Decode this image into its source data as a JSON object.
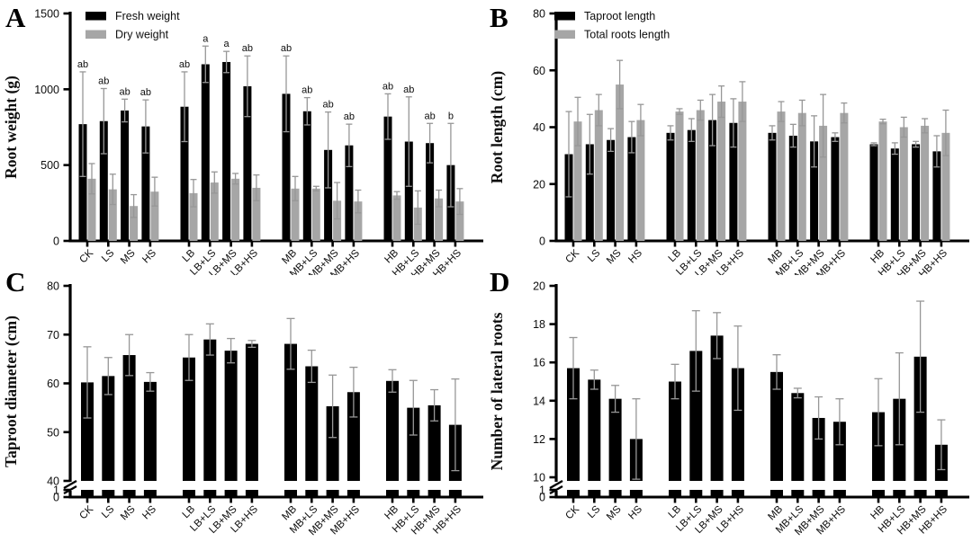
{
  "figure_title": "",
  "colors": {
    "bar_black": "#000000",
    "bar_gray": "#a6a6a6",
    "error_bar": "#979797",
    "axis": "#000000"
  },
  "categories": [
    "CK",
    "LS",
    "MS",
    "HS",
    "LB",
    "LB+LS",
    "LB+MS",
    "LB+HS",
    "MB",
    "MB+LS",
    "MB+MS",
    "MB+HS",
    "HB",
    "HB+LS",
    "HB+MS",
    "HB+HS"
  ],
  "chart_data": [
    {
      "panel_label": "A",
      "type": "bar",
      "ylabel": "Root weight (g)",
      "ylim": [
        0,
        1500
      ],
      "yticks": [
        0,
        500,
        1000,
        1500
      ],
      "legend_position": "top-left-inside",
      "grouping": "4 groups of 4 categories",
      "series": [
        {
          "name": "Fresh weight",
          "color": "#000000",
          "values": [
            770,
            790,
            860,
            755,
            885,
            1165,
            1180,
            1020,
            970,
            855,
            600,
            630,
            820,
            655,
            645,
            500
          ],
          "errors": [
            345,
            215,
            75,
            175,
            230,
            120,
            70,
            200,
            250,
            90,
            250,
            140,
            150,
            295,
            130,
            275
          ]
        },
        {
          "name": "Dry weight",
          "color": "#a6a6a6",
          "values": [
            410,
            340,
            230,
            325,
            315,
            385,
            410,
            350,
            345,
            345,
            265,
            260,
            300,
            220,
            280,
            260
          ],
          "errors": [
            100,
            100,
            75,
            95,
            90,
            70,
            35,
            85,
            80,
            15,
            120,
            75,
            25,
            110,
            55,
            85
          ]
        }
      ],
      "sig_letters": [
        "ab",
        "ab",
        "ab",
        "ab",
        "ab",
        "a",
        "a",
        "ab",
        "ab",
        "ab",
        "ab",
        "ab",
        "ab",
        "ab",
        "ab",
        "b"
      ]
    },
    {
      "panel_label": "B",
      "type": "bar",
      "ylabel": "Root length (cm)",
      "ylim": [
        0,
        80
      ],
      "yticks": [
        0,
        20,
        40,
        60,
        80
      ],
      "legend_position": "top-left-inside",
      "grouping": "4 groups of 4 categories",
      "series": [
        {
          "name": "Taproot length",
          "color": "#000000",
          "values": [
            30.5,
            34,
            35.5,
            36.5,
            38,
            39,
            42.5,
            41.5,
            38,
            37,
            35,
            36.5,
            34,
            32.5,
            34,
            31.5
          ],
          "errors": [
            15,
            10.5,
            4,
            5.5,
            2.5,
            4,
            9,
            8.5,
            2.5,
            4,
            9,
            1.5,
            0.5,
            2,
            1,
            5.5
          ]
        },
        {
          "name": "Total roots length",
          "color": "#a6a6a6",
          "values": [
            42,
            46,
            55,
            42.5,
            45.5,
            46,
            49,
            49,
            45.5,
            45,
            40.5,
            45,
            42,
            40,
            40.5,
            38
          ],
          "errors": [
            8.5,
            5.5,
            8.5,
            5.5,
            1,
            3.5,
            5.5,
            7,
            3.5,
            4.5,
            11,
            3.5,
            0.8,
            3.5,
            2.5,
            8
          ]
        }
      ]
    },
    {
      "panel_label": "C",
      "type": "bar",
      "ylabel": "Taproot diameter (cm)",
      "axis_break": {
        "lower_ticks": [
          0,
          1
        ],
        "upper_ticks": [
          40,
          50,
          60,
          70,
          80
        ],
        "upper_range": [
          40,
          80
        ]
      },
      "grouping": "4 groups of 4 categories",
      "series": [
        {
          "name": "Taproot diameter",
          "color": "#000000",
          "values": [
            60.2,
            61.5,
            65.8,
            60.3,
            65.3,
            69,
            66.7,
            68.1,
            68.1,
            63.5,
            55.3,
            58.2,
            60.5,
            55,
            55.5,
            51.5
          ],
          "errors": [
            7.3,
            3.8,
            4.2,
            1.9,
            4.7,
            3.2,
            2.5,
            0.7,
            5.2,
            3.3,
            6.4,
            5.1,
            2.3,
            5.6,
            3.2,
            9.4
          ]
        }
      ]
    },
    {
      "panel_label": "D",
      "type": "bar",
      "ylabel": "Number of lateral roots",
      "axis_break": {
        "lower_ticks": [
          0,
          1
        ],
        "upper_ticks": [
          10,
          12,
          14,
          16,
          18,
          20
        ],
        "upper_range": [
          10,
          20
        ]
      },
      "grouping": "4 groups of 4 categories",
      "series": [
        {
          "name": "Number of lateral roots",
          "color": "#000000",
          "values": [
            15.7,
            15.1,
            14.1,
            12.0,
            15.0,
            16.6,
            17.4,
            15.7,
            15.5,
            14.4,
            13.1,
            12.9,
            13.4,
            14.1,
            16.3,
            11.7
          ],
          "errors": [
            1.6,
            0.5,
            0.7,
            2.1,
            0.9,
            2.1,
            1.2,
            2.2,
            0.9,
            0.25,
            1.1,
            1.2,
            1.75,
            2.4,
            2.9,
            1.3
          ]
        }
      ]
    }
  ]
}
